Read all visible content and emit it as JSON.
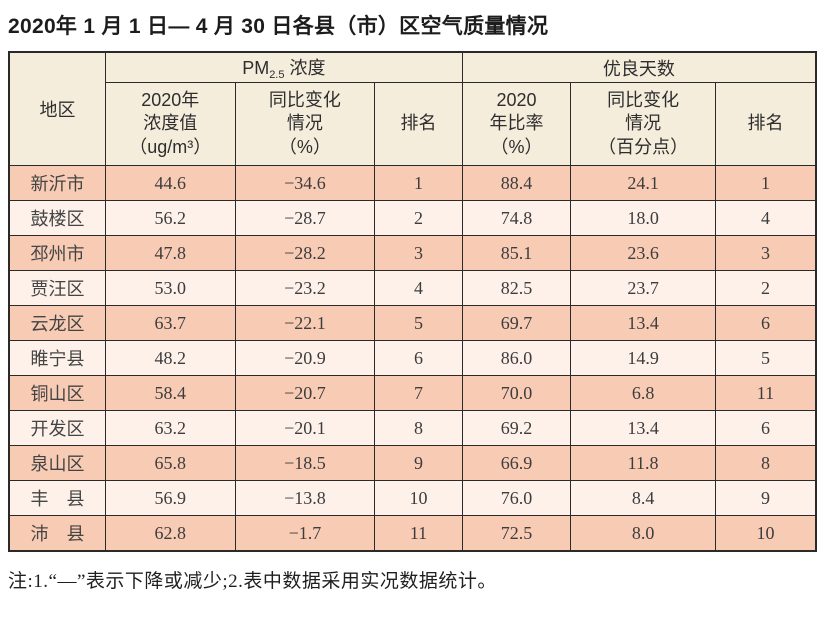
{
  "title": "2020年 1 月 1 日— 4 月 30 日各县（市）区空气质量情况",
  "table": {
    "region_header": "地区",
    "pm25_group": {
      "prefix": "PM",
      "sub": "2.5",
      "suffix": " 浓度"
    },
    "good_days_group": "优良天数",
    "sub_headers": {
      "pm_value": "2020年\n浓度值\n（ug/m³）",
      "pm_change": "同比变化\n情况\n（%）",
      "pm_rank": "排名",
      "ratio": "2020\n年比率\n（%）",
      "ratio_change": "同比变化\n情况\n（百分点）",
      "ratio_rank": "排名"
    },
    "rows": [
      {
        "region": "新沂市",
        "pm_value": "44.6",
        "pm_change": "−34.6",
        "pm_rank": "1",
        "ratio": "88.4",
        "ratio_change": "24.1",
        "ratio_rank": "1"
      },
      {
        "region": "鼓楼区",
        "pm_value": "56.2",
        "pm_change": "−28.7",
        "pm_rank": "2",
        "ratio": "74.8",
        "ratio_change": "18.0",
        "ratio_rank": "4"
      },
      {
        "region": "邳州市",
        "pm_value": "47.8",
        "pm_change": "−28.2",
        "pm_rank": "3",
        "ratio": "85.1",
        "ratio_change": "23.6",
        "ratio_rank": "3"
      },
      {
        "region": "贾汪区",
        "pm_value": "53.0",
        "pm_change": "−23.2",
        "pm_rank": "4",
        "ratio": "82.5",
        "ratio_change": "23.7",
        "ratio_rank": "2"
      },
      {
        "region": "云龙区",
        "pm_value": "63.7",
        "pm_change": "−22.1",
        "pm_rank": "5",
        "ratio": "69.7",
        "ratio_change": "13.4",
        "ratio_rank": "6"
      },
      {
        "region": "睢宁县",
        "pm_value": "48.2",
        "pm_change": "−20.9",
        "pm_rank": "6",
        "ratio": "86.0",
        "ratio_change": "14.9",
        "ratio_rank": "5"
      },
      {
        "region": "铜山区",
        "pm_value": "58.4",
        "pm_change": "−20.7",
        "pm_rank": "7",
        "ratio": "70.0",
        "ratio_change": "6.8",
        "ratio_rank": "11"
      },
      {
        "region": "开发区",
        "pm_value": "63.2",
        "pm_change": "−20.1",
        "pm_rank": "8",
        "ratio": "69.2",
        "ratio_change": "13.4",
        "ratio_rank": "6"
      },
      {
        "region": "泉山区",
        "pm_value": "65.8",
        "pm_change": "−18.5",
        "pm_rank": "9",
        "ratio": "66.9",
        "ratio_change": "11.8",
        "ratio_rank": "8"
      },
      {
        "region": "丰　县",
        "pm_value": "56.9",
        "pm_change": "−13.8",
        "pm_rank": "10",
        "ratio": "76.0",
        "ratio_change": "8.4",
        "ratio_rank": "9"
      },
      {
        "region": "沛　县",
        "pm_value": "62.8",
        "pm_change": "−1.7",
        "pm_rank": "11",
        "ratio": "72.5",
        "ratio_change": "8.0",
        "ratio_rank": "10"
      }
    ]
  },
  "note": "注:1.“—”表示下降或减少;2.表中数据采用实况数据统计。",
  "colors": {
    "row_salmon": "#f8cbb5",
    "row_light": "#fdf1ea",
    "header_cream": "#f5eddc",
    "border": "#2a2a2a"
  }
}
